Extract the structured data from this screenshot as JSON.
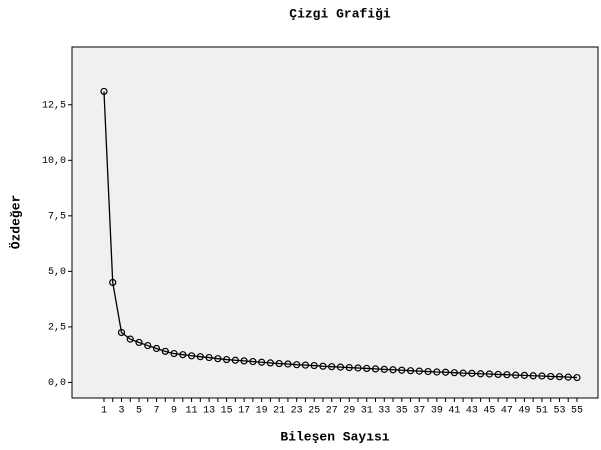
{
  "chart_data": {
    "type": "line",
    "title": "Çizgi Grafiği",
    "xlabel": "Bileşen Sayısı",
    "ylabel": "Özdeğer",
    "categories": [
      1,
      null,
      3,
      null,
      5,
      null,
      7,
      null,
      9,
      null,
      11,
      null,
      13,
      null,
      15,
      null,
      17,
      null,
      19,
      null,
      21,
      null,
      23,
      null,
      25,
      null,
      27,
      null,
      29,
      null,
      31,
      null,
      33,
      null,
      35,
      null,
      37,
      null,
      39,
      null,
      41,
      null,
      43,
      null,
      45,
      null,
      47,
      null,
      49,
      null,
      51,
      null,
      53,
      null,
      55
    ],
    "series": [
      {
        "name": "Özdeğer",
        "color": "#000000",
        "values": [
          13.1,
          4.5,
          2.25,
          1.95,
          1.8,
          1.66,
          1.53,
          1.4,
          1.3,
          1.25,
          1.2,
          1.16,
          1.12,
          1.07,
          1.03,
          1.0,
          0.97,
          0.94,
          0.91,
          0.88,
          0.85,
          0.83,
          0.8,
          0.78,
          0.76,
          0.73,
          0.71,
          0.69,
          0.67,
          0.65,
          0.63,
          0.61,
          0.59,
          0.57,
          0.55,
          0.53,
          0.51,
          0.49,
          0.47,
          0.46,
          0.44,
          0.42,
          0.41,
          0.39,
          0.38,
          0.36,
          0.35,
          0.33,
          0.32,
          0.3,
          0.29,
          0.27,
          0.26,
          0.24,
          0.22
        ]
      }
    ],
    "ylim": [
      -0.7,
      15.1
    ],
    "yticks": [
      {
        "value": 0,
        "label": "0,0"
      },
      {
        "value": 2.5,
        "label": "2,5"
      },
      {
        "value": 5,
        "label": "5,0"
      },
      {
        "value": 7.5,
        "label": "7,5"
      },
      {
        "value": 10,
        "label": "10,0"
      },
      {
        "value": 12.5,
        "label": "12,5"
      }
    ],
    "grid": false
  }
}
